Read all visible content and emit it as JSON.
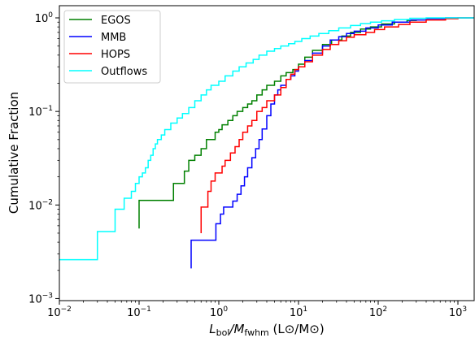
{
  "chart_data": {
    "type": "line",
    "step": true,
    "xscale": "log",
    "yscale": "log",
    "xlim": [
      0.01,
      1600
    ],
    "ylim": [
      0.00095,
      1.35
    ],
    "grid": false,
    "legend_placement": "upper-left",
    "xlabel_main": "L",
    "xlabel_sub1": "bol",
    "xlabel_mid": "/M",
    "xlabel_sub2": "fwhm",
    "xlabel_unit": " (L⊙/M⊙)",
    "ylabel": "Cumulative Fraction",
    "x_ticks": [
      {
        "value": 0.01,
        "base": "10",
        "exp": "−2"
      },
      {
        "value": 0.1,
        "base": "10",
        "exp": "−1"
      },
      {
        "value": 1,
        "base": "10",
        "exp": "0"
      },
      {
        "value": 10,
        "base": "10",
        "exp": "1"
      },
      {
        "value": 100,
        "base": "10",
        "exp": "2"
      },
      {
        "value": 1000,
        "base": "10",
        "exp": "3"
      }
    ],
    "y_ticks": [
      {
        "value": 0.001,
        "base": "10",
        "exp": "−3"
      },
      {
        "value": 0.01,
        "base": "10",
        "exp": "−2"
      },
      {
        "value": 0.1,
        "base": "10",
        "exp": "−1"
      },
      {
        "value": 1,
        "base": "10",
        "exp": "0"
      }
    ],
    "series": [
      {
        "name": "EGOS",
        "color": "#008000",
        "points": [
          [
            0.1,
            0.0056
          ],
          [
            0.1,
            0.0112
          ],
          [
            0.27,
            0.0112
          ],
          [
            0.27,
            0.017
          ],
          [
            0.37,
            0.017
          ],
          [
            0.37,
            0.023
          ],
          [
            0.42,
            0.023
          ],
          [
            0.42,
            0.03
          ],
          [
            0.5,
            0.03
          ],
          [
            0.5,
            0.034
          ],
          [
            0.6,
            0.034
          ],
          [
            0.6,
            0.04
          ],
          [
            0.7,
            0.04
          ],
          [
            0.7,
            0.05
          ],
          [
            0.8,
            0.05
          ],
          [
            0.9,
            0.06
          ],
          [
            1.0,
            0.064
          ],
          [
            1.1,
            0.072
          ],
          [
            1.3,
            0.08
          ],
          [
            1.5,
            0.09
          ],
          [
            1.7,
            0.1
          ],
          [
            2.0,
            0.11
          ],
          [
            2.3,
            0.12
          ],
          [
            2.6,
            0.13
          ],
          [
            3.0,
            0.15
          ],
          [
            3.5,
            0.17
          ],
          [
            4.0,
            0.19
          ],
          [
            5.0,
            0.21
          ],
          [
            6.0,
            0.24
          ],
          [
            7.0,
            0.26
          ],
          [
            8.5,
            0.28
          ],
          [
            10,
            0.32
          ],
          [
            12,
            0.38
          ],
          [
            15,
            0.45
          ],
          [
            20,
            0.52
          ],
          [
            26,
            0.58
          ],
          [
            35,
            0.64
          ],
          [
            45,
            0.7
          ],
          [
            60,
            0.76
          ],
          [
            80,
            0.8
          ],
          [
            110,
            0.86
          ],
          [
            160,
            0.9
          ],
          [
            230,
            0.94
          ],
          [
            300,
            0.96
          ]
        ]
      },
      {
        "name": "MMB",
        "color": "#0000ff",
        "points": [
          [
            0.45,
            0.0021
          ],
          [
            0.45,
            0.0042
          ],
          [
            0.92,
            0.0042
          ],
          [
            0.92,
            0.0063
          ],
          [
            1.05,
            0.0063
          ],
          [
            1.05,
            0.008
          ],
          [
            1.15,
            0.008
          ],
          [
            1.15,
            0.0095
          ],
          [
            1.3,
            0.0095
          ],
          [
            1.5,
            0.011
          ],
          [
            1.7,
            0.013
          ],
          [
            1.9,
            0.016
          ],
          [
            2.1,
            0.02
          ],
          [
            2.3,
            0.025
          ],
          [
            2.6,
            0.032
          ],
          [
            2.9,
            0.04
          ],
          [
            3.2,
            0.05
          ],
          [
            3.5,
            0.065
          ],
          [
            4.0,
            0.09
          ],
          [
            4.5,
            0.12
          ],
          [
            5.0,
            0.15
          ],
          [
            5.5,
            0.17
          ],
          [
            6.0,
            0.19
          ],
          [
            7.0,
            0.22
          ],
          [
            8.0,
            0.24
          ],
          [
            9.0,
            0.27
          ],
          [
            10,
            0.3
          ],
          [
            12,
            0.35
          ],
          [
            15,
            0.42
          ],
          [
            20,
            0.5
          ],
          [
            25,
            0.58
          ],
          [
            32,
            0.63
          ],
          [
            40,
            0.68
          ],
          [
            50,
            0.72
          ],
          [
            70,
            0.78
          ],
          [
            100,
            0.84
          ],
          [
            150,
            0.9
          ],
          [
            250,
            0.95
          ],
          [
            400,
            0.98
          ],
          [
            700,
            1.0
          ],
          [
            1600,
            1.0
          ]
        ]
      },
      {
        "name": "HOPS",
        "color": "#ff0000",
        "points": [
          [
            0.6,
            0.005
          ],
          [
            0.6,
            0.0095
          ],
          [
            0.73,
            0.0095
          ],
          [
            0.73,
            0.014
          ],
          [
            0.8,
            0.014
          ],
          [
            0.8,
            0.018
          ],
          [
            0.9,
            0.018
          ],
          [
            0.9,
            0.022
          ],
          [
            1.0,
            0.022
          ],
          [
            1.1,
            0.026
          ],
          [
            1.2,
            0.03
          ],
          [
            1.4,
            0.036
          ],
          [
            1.6,
            0.042
          ],
          [
            1.8,
            0.05
          ],
          [
            2.0,
            0.06
          ],
          [
            2.3,
            0.07
          ],
          [
            2.6,
            0.08
          ],
          [
            3.0,
            0.1
          ],
          [
            3.5,
            0.11
          ],
          [
            4.0,
            0.13
          ],
          [
            5.0,
            0.15
          ],
          [
            6.0,
            0.18
          ],
          [
            7.0,
            0.22
          ],
          [
            8.0,
            0.25
          ],
          [
            9.0,
            0.28
          ],
          [
            10,
            0.3
          ],
          [
            12,
            0.34
          ],
          [
            15,
            0.4
          ],
          [
            20,
            0.46
          ],
          [
            25,
            0.52
          ],
          [
            32,
            0.57
          ],
          [
            40,
            0.62
          ],
          [
            50,
            0.66
          ],
          [
            70,
            0.7
          ],
          [
            90,
            0.75
          ],
          [
            120,
            0.8
          ],
          [
            180,
            0.85
          ],
          [
            250,
            0.9
          ],
          [
            400,
            0.95
          ],
          [
            700,
            0.98
          ],
          [
            1000,
            1.0
          ],
          [
            1600,
            1.0
          ]
        ]
      },
      {
        "name": "Outflows",
        "color": "#00ffff",
        "points": [
          [
            0.01,
            0.0026
          ],
          [
            0.03,
            0.0026
          ],
          [
            0.03,
            0.0052
          ],
          [
            0.05,
            0.0052
          ],
          [
            0.05,
            0.009
          ],
          [
            0.065,
            0.009
          ],
          [
            0.065,
            0.0118
          ],
          [
            0.08,
            0.0118
          ],
          [
            0.08,
            0.014
          ],
          [
            0.09,
            0.014
          ],
          [
            0.09,
            0.017
          ],
          [
            0.1,
            0.017
          ],
          [
            0.1,
            0.02
          ],
          [
            0.11,
            0.022
          ],
          [
            0.12,
            0.025
          ],
          [
            0.13,
            0.03
          ],
          [
            0.14,
            0.034
          ],
          [
            0.15,
            0.04
          ],
          [
            0.16,
            0.045
          ],
          [
            0.17,
            0.05
          ],
          [
            0.19,
            0.056
          ],
          [
            0.21,
            0.064
          ],
          [
            0.25,
            0.075
          ],
          [
            0.3,
            0.085
          ],
          [
            0.35,
            0.095
          ],
          [
            0.42,
            0.11
          ],
          [
            0.5,
            0.13
          ],
          [
            0.6,
            0.15
          ],
          [
            0.7,
            0.17
          ],
          [
            0.8,
            0.19
          ],
          [
            1.0,
            0.21
          ],
          [
            1.2,
            0.24
          ],
          [
            1.5,
            0.27
          ],
          [
            1.8,
            0.3
          ],
          [
            2.2,
            0.33
          ],
          [
            2.7,
            0.36
          ],
          [
            3.2,
            0.4
          ],
          [
            4.0,
            0.44
          ],
          [
            5.0,
            0.47
          ],
          [
            6.0,
            0.5
          ],
          [
            7.5,
            0.53
          ],
          [
            9.0,
            0.56
          ],
          [
            11,
            0.6
          ],
          [
            14,
            0.64
          ],
          [
            18,
            0.68
          ],
          [
            24,
            0.73
          ],
          [
            32,
            0.78
          ],
          [
            45,
            0.83
          ],
          [
            60,
            0.87
          ],
          [
            80,
            0.9
          ],
          [
            110,
            0.93
          ],
          [
            160,
            0.96
          ],
          [
            250,
            0.99
          ],
          [
            400,
            1.0
          ],
          [
            1600,
            1.0
          ]
        ]
      }
    ]
  }
}
